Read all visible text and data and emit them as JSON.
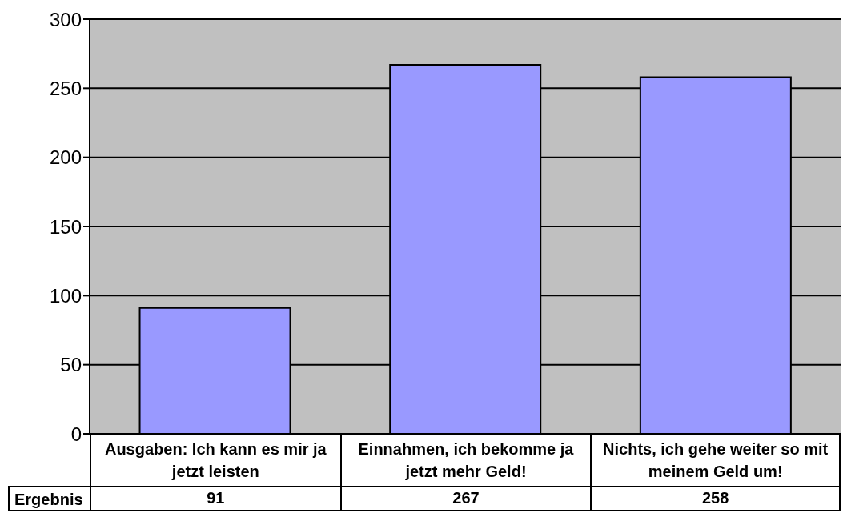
{
  "chart_data": {
    "type": "bar",
    "categories": [
      "Ausgaben: Ich kann es mir ja jetzt leisten",
      "Einnahmen, ich bekomme ja jetzt mehr Geld!",
      "Nichts, ich gehe weiter so mit meinem Geld um!"
    ],
    "series": [
      {
        "name": "Ergebnis",
        "color": "#9999ff",
        "values": [
          91,
          267,
          258
        ]
      }
    ],
    "ylim": [
      0,
      300
    ],
    "yticks": [
      0,
      50,
      100,
      150,
      200,
      250,
      300
    ],
    "grid": "y",
    "data_labels": true
  }
}
